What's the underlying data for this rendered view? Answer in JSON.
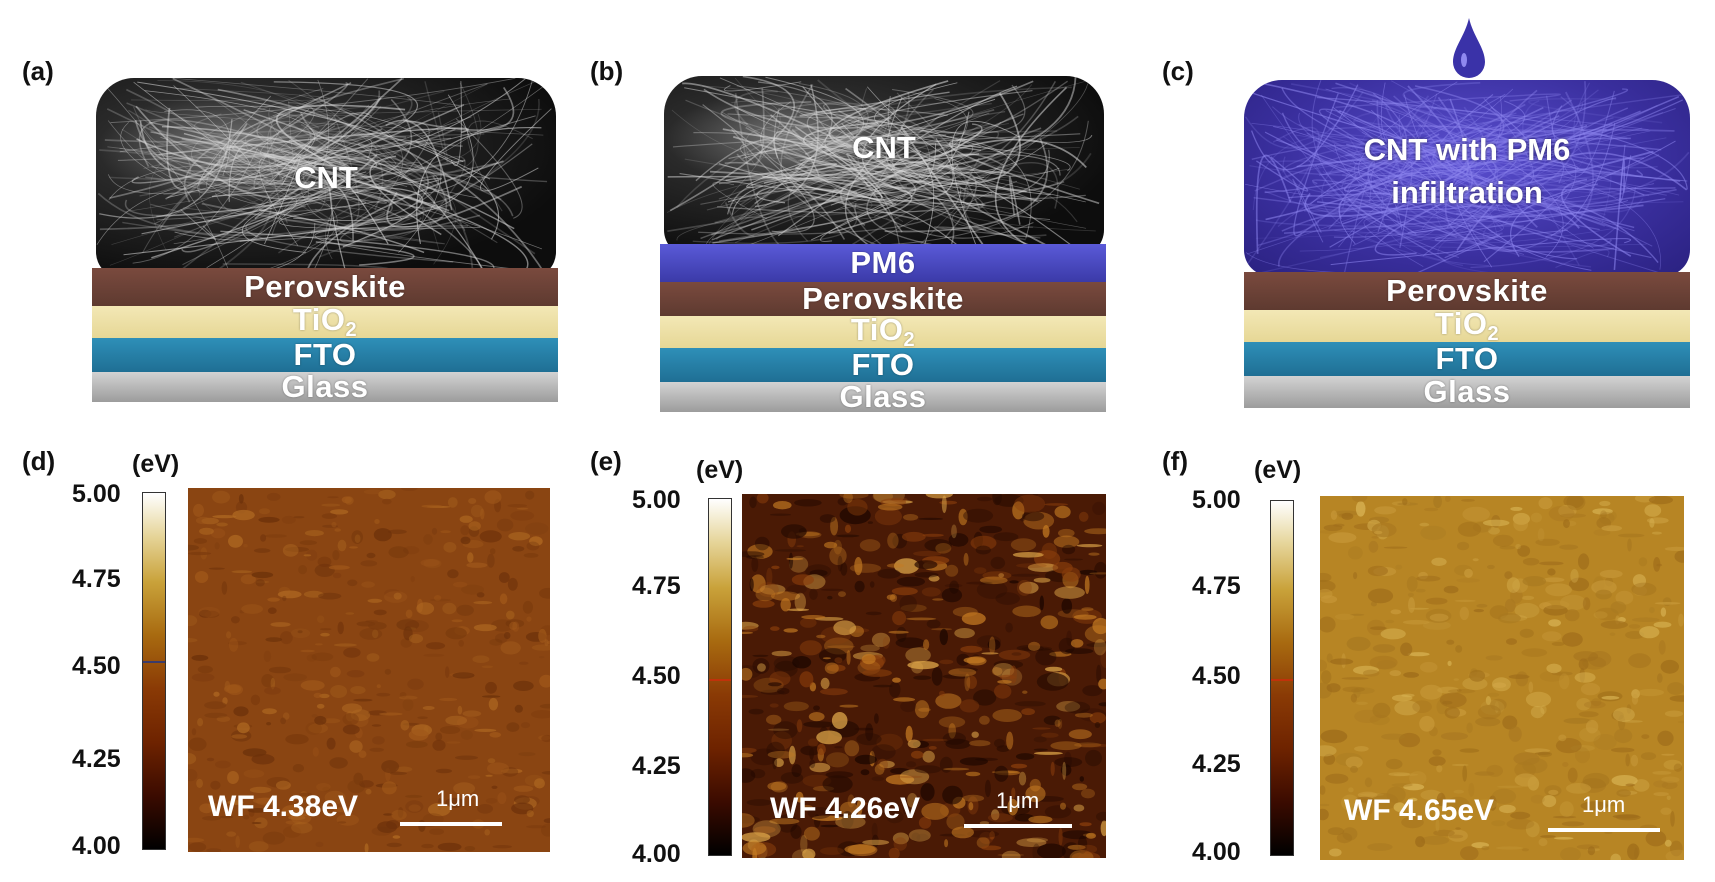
{
  "panel_labels": [
    "(a)",
    "(b)",
    "(c)",
    "(d)",
    "(e)",
    "(f)"
  ],
  "stacks": {
    "a": {
      "cnt": "CNT",
      "perovskite": "Perovskite",
      "tio2_main": "TiO",
      "tio2_sub": "2",
      "fto": "FTO",
      "glass": "Glass"
    },
    "b": {
      "cnt": "CNT",
      "pm6": "PM6",
      "perovskite": "Perovskite",
      "tio2_main": "TiO",
      "tio2_sub": "2",
      "fto": "FTO",
      "glass": "Glass"
    },
    "c": {
      "cnt_line1": "CNT with PM6",
      "cnt_line2": "infiltration",
      "perovskite": "Perovskite",
      "tio2_main": "TiO",
      "tio2_sub": "2",
      "fto": "FTO",
      "glass": "Glass"
    }
  },
  "colors": {
    "pm6": "#4a46c4",
    "perovskite": "#6b4236",
    "tio2": "#ece0a6",
    "fto": "#2a82ab",
    "glass": "#bdbdbd",
    "cnt_black": "#151515"
  },
  "kpfm": {
    "unit": "(eV)",
    "ticks": [
      "5.00",
      "4.75",
      "4.50",
      "4.25",
      "4.00"
    ],
    "scale_bar": "1μm",
    "maps": [
      {
        "wf": "WF 4.38eV",
        "base_color": "#8a4512"
      },
      {
        "wf": "WF 4.26eV",
        "base_color": "#4a1a05"
      },
      {
        "wf": "WF 4.65eV",
        "base_color": "#b78524"
      }
    ]
  }
}
